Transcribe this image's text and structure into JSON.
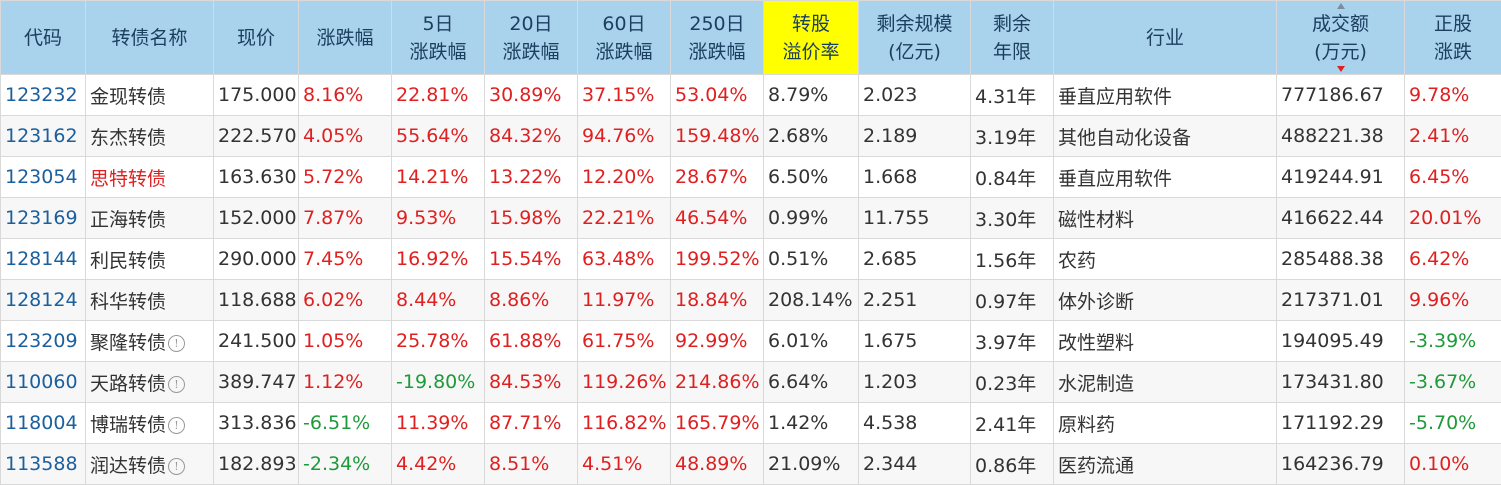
{
  "colors": {
    "header_bg": "#a9d3ec",
    "header_highlight": "#ffff00",
    "up": "#e02020",
    "down": "#1f9a3a",
    "code": "#1a5f9e"
  },
  "headers": [
    {
      "key": "code",
      "lines": [
        "代码"
      ]
    },
    {
      "key": "name",
      "lines": [
        "转债名称"
      ]
    },
    {
      "key": "price",
      "lines": [
        "现价"
      ]
    },
    {
      "key": "change",
      "lines": [
        "涨跌幅"
      ]
    },
    {
      "key": "chg5",
      "lines": [
        "5日",
        "涨跌幅"
      ]
    },
    {
      "key": "chg20",
      "lines": [
        "20日",
        "涨跌幅"
      ]
    },
    {
      "key": "chg60",
      "lines": [
        "60日",
        "涨跌幅"
      ]
    },
    {
      "key": "chg250",
      "lines": [
        "250日",
        "涨跌幅"
      ]
    },
    {
      "key": "premium",
      "lines": [
        "转股",
        "溢价率"
      ],
      "highlight": true
    },
    {
      "key": "size",
      "lines": [
        "剩余规模",
        "(亿元)"
      ]
    },
    {
      "key": "years",
      "lines": [
        "剩余",
        "年限"
      ]
    },
    {
      "key": "industry",
      "lines": [
        "行业"
      ]
    },
    {
      "key": "volume",
      "lines": [
        "成交额",
        "(万元)"
      ],
      "sorted": "desc"
    },
    {
      "key": "stock_change",
      "lines": [
        "正股",
        "涨跌"
      ]
    }
  ],
  "rows": [
    {
      "code": "123232",
      "name": "金现转债",
      "info": false,
      "name_red": false,
      "price": "175.000",
      "change": "8.16%",
      "chg5": "22.81%",
      "chg20": "30.89%",
      "chg60": "37.15%",
      "chg250": "53.04%",
      "premium": "8.79%",
      "size": "2.023",
      "years": "4.31年",
      "industry": "垂直应用软件",
      "volume": "777186.67",
      "stock_change": "9.78%"
    },
    {
      "code": "123162",
      "name": "东杰转债",
      "info": false,
      "name_red": false,
      "price": "222.570",
      "change": "4.05%",
      "chg5": "55.64%",
      "chg20": "84.32%",
      "chg60": "94.76%",
      "chg250": "159.48%",
      "premium": "2.68%",
      "size": "2.189",
      "years": "3.19年",
      "industry": "其他自动化设备",
      "volume": "488221.38",
      "stock_change": "2.41%"
    },
    {
      "code": "123054",
      "name": "思特转债",
      "info": false,
      "name_red": true,
      "price": "163.630",
      "change": "5.72%",
      "chg5": "14.21%",
      "chg20": "13.22%",
      "chg60": "12.20%",
      "chg250": "28.67%",
      "premium": "6.50%",
      "size": "1.668",
      "years": "0.84年",
      "industry": "垂直应用软件",
      "volume": "419244.91",
      "stock_change": "6.45%"
    },
    {
      "code": "123169",
      "name": "正海转债",
      "info": false,
      "name_red": false,
      "price": "152.000",
      "change": "7.87%",
      "chg5": "9.53%",
      "chg20": "15.98%",
      "chg60": "22.21%",
      "chg250": "46.54%",
      "premium": "0.99%",
      "size": "11.755",
      "years": "3.30年",
      "industry": "磁性材料",
      "volume": "416622.44",
      "stock_change": "20.01%"
    },
    {
      "code": "128144",
      "name": "利民转债",
      "info": false,
      "name_red": false,
      "price": "290.000",
      "change": "7.45%",
      "chg5": "16.92%",
      "chg20": "15.54%",
      "chg60": "63.48%",
      "chg250": "199.52%",
      "premium": "0.51%",
      "size": "2.685",
      "years": "1.56年",
      "industry": "农药",
      "volume": "285488.38",
      "stock_change": "6.42%"
    },
    {
      "code": "128124",
      "name": "科华转债",
      "info": false,
      "name_red": false,
      "price": "118.688",
      "change": "6.02%",
      "chg5": "8.44%",
      "chg20": "8.86%",
      "chg60": "11.97%",
      "chg250": "18.84%",
      "premium": "208.14%",
      "size": "2.251",
      "years": "0.97年",
      "industry": "体外诊断",
      "volume": "217371.01",
      "stock_change": "9.96%"
    },
    {
      "code": "123209",
      "name": "聚隆转债",
      "info": true,
      "name_red": false,
      "price": "241.500",
      "change": "1.05%",
      "chg5": "25.78%",
      "chg20": "61.88%",
      "chg60": "61.75%",
      "chg250": "92.99%",
      "premium": "6.01%",
      "size": "1.675",
      "years": "3.97年",
      "industry": "改性塑料",
      "volume": "194095.49",
      "stock_change": "-3.39%"
    },
    {
      "code": "110060",
      "name": "天路转债",
      "info": true,
      "name_red": false,
      "price": "389.747",
      "change": "1.12%",
      "chg5": "-19.80%",
      "chg20": "84.53%",
      "chg60": "119.26%",
      "chg250": "214.86%",
      "premium": "6.64%",
      "size": "1.203",
      "years": "0.23年",
      "industry": "水泥制造",
      "volume": "173431.80",
      "stock_change": "-3.67%"
    },
    {
      "code": "118004",
      "name": "博瑞转债",
      "info": true,
      "name_red": false,
      "price": "313.836",
      "change": "-6.51%",
      "chg5": "11.39%",
      "chg20": "87.71%",
      "chg60": "116.82%",
      "chg250": "165.79%",
      "premium": "1.42%",
      "size": "4.538",
      "years": "2.41年",
      "industry": "原料药",
      "volume": "171192.29",
      "stock_change": "-5.70%"
    },
    {
      "code": "113588",
      "name": "润达转债",
      "info": true,
      "name_red": false,
      "price": "182.893",
      "change": "-2.34%",
      "chg5": "4.42%",
      "chg20": "8.51%",
      "chg60": "4.51%",
      "chg250": "48.89%",
      "premium": "21.09%",
      "size": "2.344",
      "years": "0.86年",
      "industry": "医药流通",
      "volume": "164236.79",
      "stock_change": "0.10%"
    }
  ]
}
